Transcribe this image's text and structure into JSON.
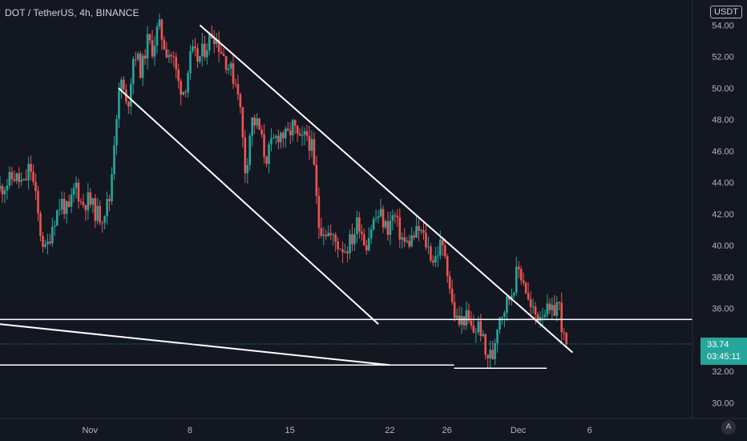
{
  "header": {
    "symbol_title": "DOT / TetherUS, 4h, BINANCE",
    "currency": "USDT"
  },
  "price_label": {
    "price": "33.74",
    "countdown": "03:45:11",
    "color": "#26a69a"
  },
  "auto_scale_button": "A",
  "colors": {
    "background": "#131722",
    "up": "#26a69a",
    "down": "#ef5350",
    "axis_text": "#b2b5be",
    "drawing": "#ffffff"
  },
  "chart_data": {
    "type": "candlestick",
    "timeframe": "4h",
    "y_ticks": [
      "54.00",
      "52.00",
      "50.00",
      "48.00",
      "46.00",
      "44.00",
      "42.00",
      "40.00",
      "38.00",
      "36.00",
      "32.00",
      "30.00"
    ],
    "ylim": [
      29,
      55.6
    ],
    "x_ticks": [
      "Nov",
      "8",
      "15",
      "22",
      "26",
      "Dec",
      "6"
    ],
    "x_tick_days": [
      1,
      8,
      15,
      22,
      26,
      31,
      36
    ],
    "xlim": [
      -5.3,
      43.2
    ],
    "last_price": 33.74,
    "price_path": [
      [
        -5.3,
        43.6
      ],
      [
        -4.3,
        44.4
      ],
      [
        -3.6,
        43.8
      ],
      [
        -3.2,
        45.2
      ],
      [
        -2.8,
        43.0
      ],
      [
        -2.5,
        41.0
      ],
      [
        -2.1,
        39.5
      ],
      [
        -1.6,
        41.5
      ],
      [
        -1.0,
        42.8
      ],
      [
        -0.5,
        42.0
      ],
      [
        0.0,
        44.0
      ],
      [
        0.4,
        42.6
      ],
      [
        0.9,
        42.9
      ],
      [
        1.4,
        42.1
      ],
      [
        1.8,
        41.8
      ],
      [
        2.4,
        43.0
      ],
      [
        2.8,
        48.0
      ],
      [
        3.2,
        50.5
      ],
      [
        3.6,
        48.5
      ],
      [
        4.1,
        52.5
      ],
      [
        4.6,
        51.0
      ],
      [
        5.0,
        53.0
      ],
      [
        5.4,
        52.5
      ],
      [
        5.8,
        54.0
      ],
      [
        6.3,
        52.5
      ],
      [
        6.8,
        52.0
      ],
      [
        7.2,
        50.3
      ],
      [
        7.6,
        49.8
      ],
      [
        8.1,
        52.2
      ],
      [
        8.6,
        51.8
      ],
      [
        9.1,
        52.6
      ],
      [
        9.6,
        53.6
      ],
      [
        10.1,
        52.6
      ],
      [
        10.6,
        51.6
      ],
      [
        11.0,
        50.8
      ],
      [
        11.4,
        50.0
      ],
      [
        11.9,
        44.5
      ],
      [
        12.3,
        48.0
      ],
      [
        12.8,
        47.6
      ],
      [
        13.3,
        45.5
      ],
      [
        13.8,
        46.5
      ],
      [
        14.3,
        47.2
      ],
      [
        14.8,
        46.8
      ],
      [
        15.2,
        47.6
      ],
      [
        15.7,
        46.5
      ],
      [
        16.2,
        47.0
      ],
      [
        16.6,
        46.0
      ],
      [
        17.0,
        41.3
      ],
      [
        17.5,
        41.0
      ],
      [
        18.0,
        40.4
      ],
      [
        18.5,
        40.0
      ],
      [
        18.9,
        39.8
      ],
      [
        19.4,
        40.5
      ],
      [
        19.8,
        41.7
      ],
      [
        20.3,
        40.0
      ],
      [
        20.8,
        41.5
      ],
      [
        21.3,
        42.0
      ],
      [
        21.8,
        41.0
      ],
      [
        22.3,
        42.0
      ],
      [
        22.6,
        41.0
      ],
      [
        23.1,
        40.0
      ],
      [
        23.6,
        40.5
      ],
      [
        24.1,
        41.0
      ],
      [
        24.6,
        40.0
      ],
      [
        25.1,
        39.0
      ],
      [
        25.5,
        40.0
      ],
      [
        25.9,
        39.5
      ],
      [
        26.4,
        36.0
      ],
      [
        26.8,
        35.0
      ],
      [
        27.3,
        35.5
      ],
      [
        27.8,
        34.5
      ],
      [
        28.3,
        35.0
      ],
      [
        28.7,
        33.0
      ],
      [
        29.2,
        33.0
      ],
      [
        29.6,
        35.5
      ],
      [
        30.0,
        36.0
      ],
      [
        30.5,
        37.0
      ],
      [
        31.0,
        38.5
      ],
      [
        31.4,
        37.8
      ],
      [
        31.8,
        36.0
      ],
      [
        32.3,
        35.5
      ],
      [
        32.8,
        36.0
      ],
      [
        33.3,
        35.5
      ],
      [
        33.8,
        36.5
      ],
      [
        34.2,
        34.0
      ],
      [
        34.5,
        33.74
      ]
    ]
  },
  "drawings": {
    "trendlines": [
      {
        "name": "channel-upper-line",
        "from": [
          8.7,
          54.0
        ],
        "to": [
          34.8,
          33.2
        ]
      },
      {
        "name": "channel-lower-line",
        "from": [
          3.0,
          50.0
        ],
        "to": [
          21.2,
          35.0
        ]
      },
      {
        "name": "wedge-lower-line",
        "from": [
          -5.3,
          35.0
        ],
        "to": [
          22.0,
          32.4
        ]
      }
    ],
    "horizontal_lines": [
      {
        "name": "resistance-line",
        "price": 35.3,
        "from": -5.3,
        "to": 43.2
      },
      {
        "name": "support-line-left",
        "price": 32.4,
        "from": -5.3,
        "to": 26.5
      },
      {
        "name": "support-line-right",
        "price": 32.2,
        "from": 26.5,
        "to": 33.0
      }
    ],
    "dotted_price_line": 33.74
  }
}
